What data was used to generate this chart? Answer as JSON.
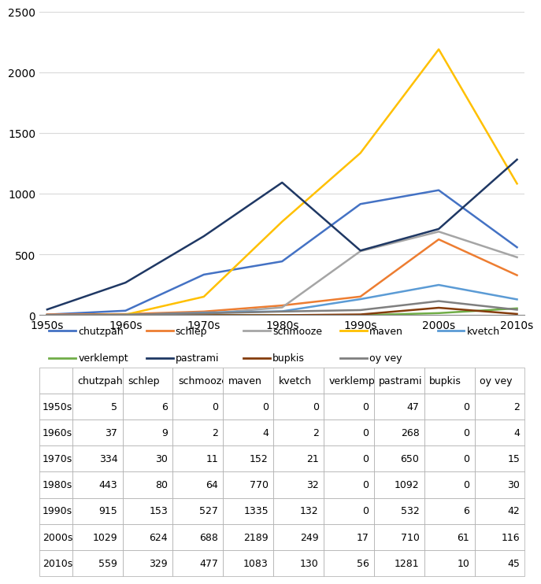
{
  "decades": [
    "1950s",
    "1960s",
    "1970s",
    "1980s",
    "1990s",
    "2000s",
    "2010s"
  ],
  "series": {
    "chutzpah": [
      5,
      37,
      334,
      443,
      915,
      1029,
      559
    ],
    "schlep": [
      6,
      9,
      30,
      80,
      153,
      624,
      329
    ],
    "schmooze": [
      0,
      2,
      11,
      64,
      527,
      688,
      477
    ],
    "maven": [
      0,
      4,
      152,
      770,
      1335,
      2189,
      1083
    ],
    "kvetch": [
      0,
      2,
      21,
      32,
      132,
      249,
      130
    ],
    "verklempt": [
      0,
      0,
      0,
      0,
      0,
      17,
      56
    ],
    "pastrami": [
      47,
      268,
      650,
      1092,
      532,
      710,
      1281
    ],
    "bupkis": [
      0,
      0,
      0,
      0,
      6,
      61,
      10
    ],
    "oy vey": [
      2,
      4,
      15,
      30,
      42,
      116,
      45
    ]
  },
  "colors": {
    "chutzpah": "#4472C4",
    "schlep": "#ED7D31",
    "schmooze": "#A5A5A5",
    "maven": "#FFC000",
    "kvetch": "#5B9BD5",
    "verklempt": "#70AD47",
    "pastrami": "#1F3864",
    "bupkis": "#843C0C",
    "oy vey": "#7F7F7F"
  },
  "ylim": [
    0,
    2500
  ],
  "yticks": [
    0,
    500,
    1000,
    1500,
    2000,
    2500
  ],
  "legend_row1": [
    "chutzpah",
    "schlep",
    "schmooze",
    "maven",
    "kvetch"
  ],
  "legend_row2": [
    "verklempt",
    "pastrami",
    "bupkis",
    "oy vey"
  ],
  "table_columns": [
    "chutzpah",
    "schlep",
    "schmooze",
    "maven",
    "kvetch",
    "verklempt",
    "pastrami",
    "bupkis",
    "oy vey"
  ],
  "table_rows": [
    "1950s",
    "1960s",
    "1970s",
    "1980s",
    "1990s",
    "2000s",
    "2010s"
  ],
  "table_data": [
    [
      5,
      6,
      0,
      0,
      0,
      0,
      47,
      0,
      2
    ],
    [
      37,
      9,
      2,
      4,
      2,
      0,
      268,
      0,
      4
    ],
    [
      334,
      30,
      11,
      152,
      21,
      0,
      650,
      0,
      15
    ],
    [
      443,
      80,
      64,
      770,
      32,
      0,
      1092,
      0,
      30
    ],
    [
      915,
      153,
      527,
      1335,
      132,
      0,
      532,
      6,
      42
    ],
    [
      1029,
      624,
      688,
      2189,
      249,
      17,
      710,
      61,
      116
    ],
    [
      559,
      329,
      477,
      1083,
      130,
      56,
      1281,
      10,
      45
    ]
  ],
  "fig_width": 6.85,
  "fig_height": 7.32
}
